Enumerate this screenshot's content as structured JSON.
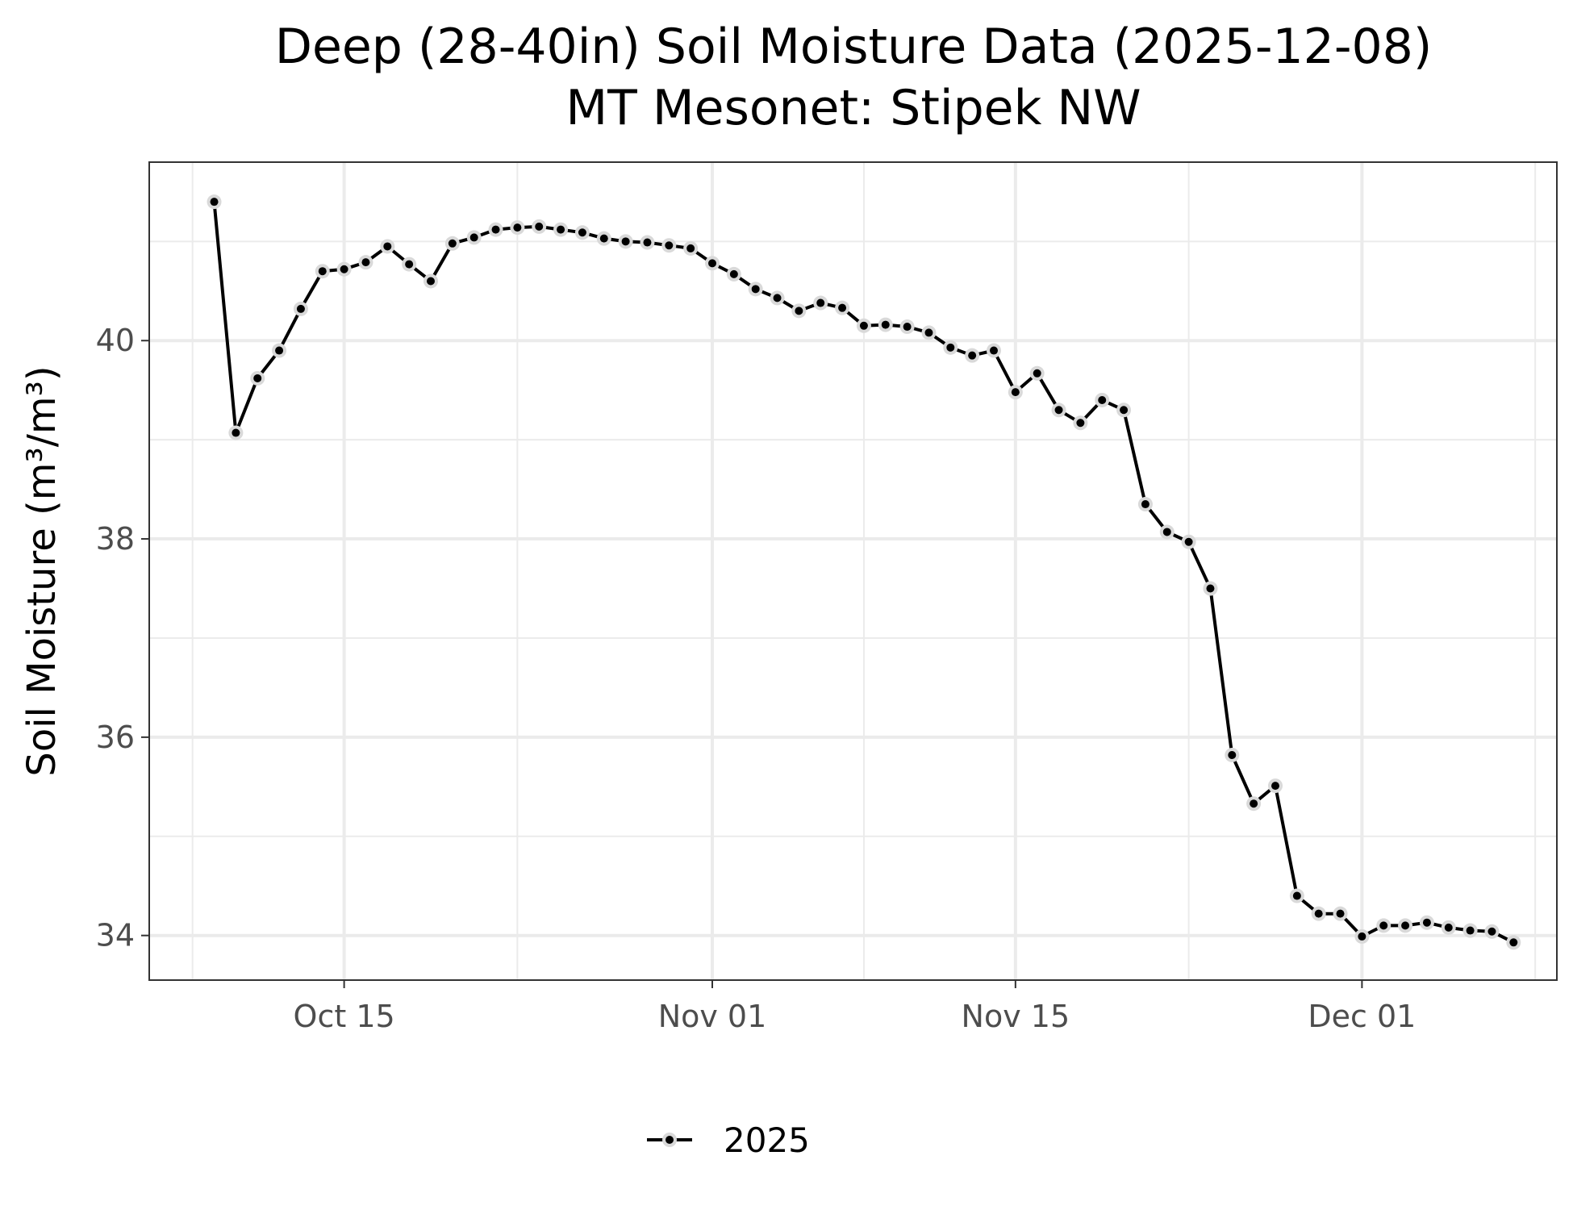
{
  "chart_data": {
    "type": "line",
    "title": "Deep (28-40in) Soil Moisture Data (2025-12-08)",
    "subtitle": "MT Mesonet: Stipek NW",
    "ylabel": "Soil Moisture (m³/m³)",
    "xlabel": "",
    "xlim": [
      "2025-10-06",
      "2025-12-10"
    ],
    "ylim": [
      33.55,
      41.8
    ],
    "grid": true,
    "legend_position": "bottom",
    "x_ticks": [
      {
        "date": "2025-10-15",
        "label": "Oct 15"
      },
      {
        "date": "2025-11-01",
        "label": "Nov 01"
      },
      {
        "date": "2025-11-15",
        "label": "Nov 15"
      },
      {
        "date": "2025-12-01",
        "label": "Dec 01"
      }
    ],
    "x_minor_ticks": [
      "2025-10-08",
      "2025-10-23",
      "2025-11-08",
      "2025-11-23",
      "2025-12-09"
    ],
    "y_ticks": [
      34,
      36,
      38,
      40
    ],
    "y_minor_ticks": [
      35,
      37,
      39,
      41
    ],
    "colors": {
      "line": "#000000",
      "halo": "#d9d9d9",
      "grid": "#ebebeb",
      "panel_border": "#333333",
      "tick_label": "#4d4d4d"
    },
    "series": [
      {
        "name": "2025",
        "x": [
          "2025-10-09",
          "2025-10-10",
          "2025-10-11",
          "2025-10-12",
          "2025-10-13",
          "2025-10-14",
          "2025-10-15",
          "2025-10-16",
          "2025-10-17",
          "2025-10-18",
          "2025-10-19",
          "2025-10-20",
          "2025-10-21",
          "2025-10-22",
          "2025-10-23",
          "2025-10-24",
          "2025-10-25",
          "2025-10-26",
          "2025-10-27",
          "2025-10-28",
          "2025-10-29",
          "2025-10-30",
          "2025-10-31",
          "2025-11-01",
          "2025-11-02",
          "2025-11-03",
          "2025-11-04",
          "2025-11-05",
          "2025-11-06",
          "2025-11-07",
          "2025-11-08",
          "2025-11-09",
          "2025-11-10",
          "2025-11-11",
          "2025-11-12",
          "2025-11-13",
          "2025-11-14",
          "2025-11-15",
          "2025-11-16",
          "2025-11-17",
          "2025-11-18",
          "2025-11-19",
          "2025-11-20",
          "2025-11-21",
          "2025-11-22",
          "2025-11-23",
          "2025-11-24",
          "2025-11-25",
          "2025-11-26",
          "2025-11-27",
          "2025-11-28",
          "2025-11-29",
          "2025-11-30",
          "2025-12-01",
          "2025-12-02",
          "2025-12-03",
          "2025-12-04",
          "2025-12-05",
          "2025-12-06",
          "2025-12-07",
          "2025-12-08"
        ],
        "values": [
          41.4,
          39.07,
          39.62,
          39.9,
          40.32,
          40.7,
          40.72,
          40.79,
          40.95,
          40.77,
          40.6,
          40.98,
          41.04,
          41.12,
          41.14,
          41.15,
          41.12,
          41.09,
          41.03,
          41.0,
          40.99,
          40.96,
          40.93,
          40.78,
          40.67,
          40.52,
          40.43,
          40.3,
          40.38,
          40.33,
          40.15,
          40.16,
          40.14,
          40.08,
          39.93,
          39.85,
          39.9,
          39.48,
          39.67,
          39.3,
          39.17,
          39.4,
          39.3,
          38.35,
          38.07,
          37.97,
          37.5,
          35.82,
          35.33,
          35.51,
          34.4,
          34.22,
          34.22,
          33.99,
          34.1,
          34.1,
          34.13,
          34.08,
          34.05,
          34.04,
          33.93
        ]
      }
    ]
  }
}
